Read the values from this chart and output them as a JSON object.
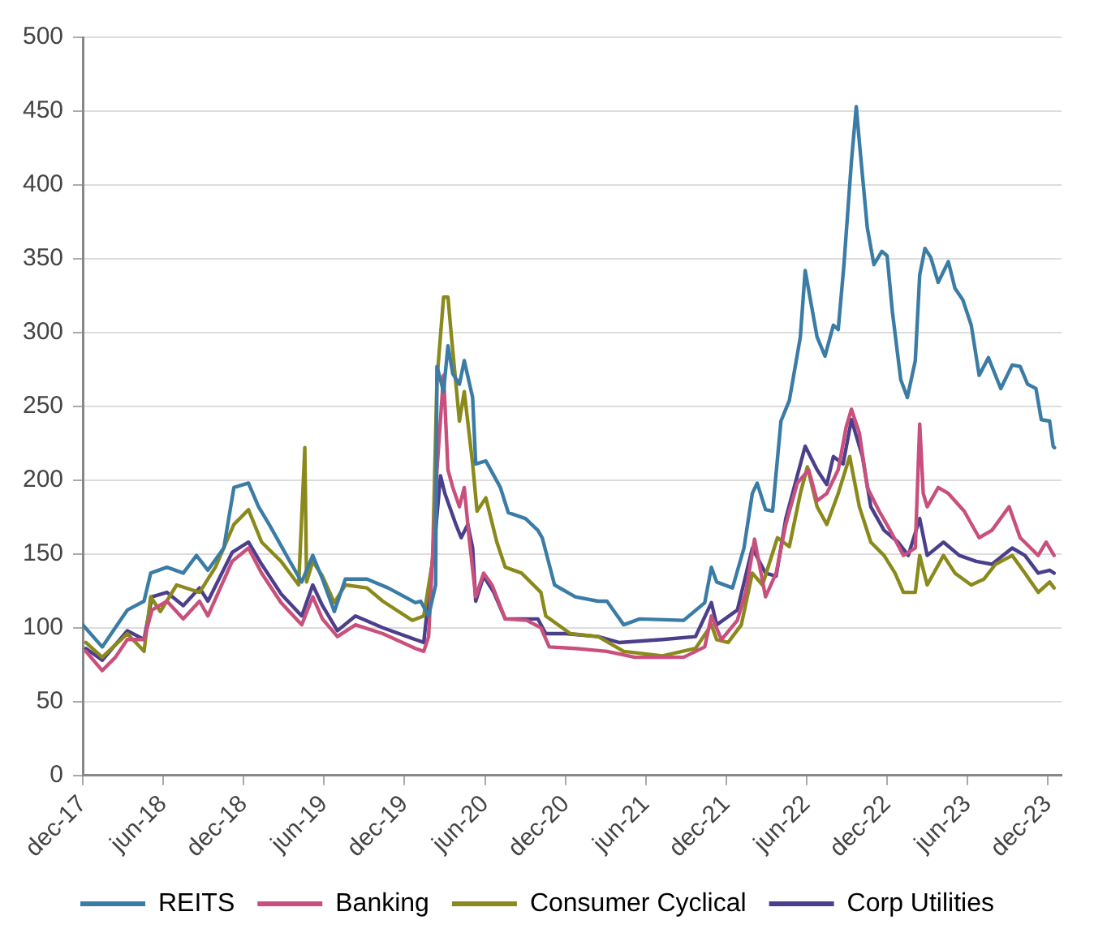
{
  "chart_data": {
    "type": "line",
    "xlim": [
      "2017-12-01",
      "2024-01-01"
    ],
    "ylim": [
      0,
      500
    ],
    "yticks": [
      0,
      50,
      100,
      150,
      200,
      250,
      300,
      350,
      400,
      450,
      500
    ],
    "xticks": [
      {
        "value": "2017-12-01",
        "label": "dec-17"
      },
      {
        "value": "2018-06-01",
        "label": "jun-18"
      },
      {
        "value": "2018-12-01",
        "label": "dec-18"
      },
      {
        "value": "2019-06-01",
        "label": "jun-19"
      },
      {
        "value": "2019-12-01",
        "label": "dec-19"
      },
      {
        "value": "2020-06-01",
        "label": "jun-20"
      },
      {
        "value": "2020-12-01",
        "label": "dec-20"
      },
      {
        "value": "2021-06-01",
        "label": "jun-21"
      },
      {
        "value": "2021-12-01",
        "label": "dec-21"
      },
      {
        "value": "2022-06-01",
        "label": "jun-22"
      },
      {
        "value": "2022-12-01",
        "label": "dec-22"
      },
      {
        "value": "2023-06-01",
        "label": "jun-23"
      },
      {
        "value": "2023-12-01",
        "label": "dec-23"
      }
    ],
    "grid": "y",
    "legend": "bottom",
    "marker": "none",
    "line_style": "solid",
    "series": [
      {
        "name": "REITS",
        "color": "#3a7ca5",
        "x": [
          "2017-12-01",
          "2018-01-14",
          "2018-03-12",
          "2018-04-19",
          "2018-05-04",
          "2018-06-10",
          "2018-07-17",
          "2018-08-16",
          "2018-09-11",
          "2018-10-17",
          "2018-11-09",
          "2018-12-12",
          "2019-01-04",
          "2019-01-28",
          "2019-03-16",
          "2019-04-12",
          "2019-05-07",
          "2019-05-29",
          "2019-06-25",
          "2019-07-20",
          "2019-09-07",
          "2019-10-25",
          "2019-12-26",
          "2020-01-07",
          "2020-01-25",
          "2020-02-10",
          "2020-02-13",
          "2020-02-28",
          "2020-03-09",
          "2020-03-20",
          "2020-04-04",
          "2020-04-15",
          "2020-05-04",
          "2020-05-11",
          "2020-06-03",
          "2020-07-06",
          "2020-07-24",
          "2020-09-01",
          "2020-09-29",
          "2020-10-09",
          "2020-11-06",
          "2020-12-23",
          "2021-02-13",
          "2021-03-05",
          "2021-04-12",
          "2021-05-18",
          "2021-08-26",
          "2021-10-13",
          "2021-10-28",
          "2021-11-09",
          "2021-12-15",
          "2022-01-10",
          "2022-01-29",
          "2022-02-09",
          "2022-02-28",
          "2022-03-16",
          "2022-04-04",
          "2022-04-23",
          "2022-05-18",
          "2022-05-29",
          "2022-06-10",
          "2022-06-25",
          "2022-07-13",
          "2022-08-01",
          "2022-08-12",
          "2022-08-25",
          "2022-09-11",
          "2022-09-22",
          "2022-09-29",
          "2022-10-17",
          "2022-11-01",
          "2022-11-19",
          "2022-12-01",
          "2022-12-13",
          "2023-01-01",
          "2023-01-16",
          "2023-02-03",
          "2023-02-13",
          "2023-02-25",
          "2023-03-10",
          "2023-03-27",
          "2023-04-19",
          "2023-05-04",
          "2023-05-22",
          "2023-06-10",
          "2023-06-28",
          "2023-07-19",
          "2023-08-16",
          "2023-09-11",
          "2023-09-29",
          "2023-10-16",
          "2023-11-04",
          "2023-11-16",
          "2023-12-05",
          "2023-12-13",
          "2023-12-16"
        ],
        "values": [
          102,
          87,
          112,
          118,
          137,
          141,
          137,
          149,
          139,
          154,
          195,
          198,
          182,
          170,
          145,
          131,
          149,
          133,
          111,
          133,
          133,
          127,
          117,
          118,
          108,
          129,
          277,
          260,
          291,
          272,
          265,
          281,
          256,
          211,
          213,
          195,
          178,
          174,
          166,
          161,
          129,
          121,
          118,
          118,
          102,
          106,
          105,
          117,
          141,
          131,
          127,
          154,
          191,
          198,
          180,
          179,
          240,
          254,
          297,
          342,
          322,
          297,
          284,
          305,
          302,
          346,
          416,
          453,
          429,
          371,
          346,
          355,
          352,
          314,
          268,
          256,
          281,
          339,
          357,
          351,
          334,
          348,
          330,
          322,
          305,
          271,
          283,
          262,
          278,
          277,
          265,
          262,
          241,
          240,
          223,
          222
        ]
      },
      {
        "name": "Banking",
        "color": "#c94f7c",
        "x": [
          "2017-12-08",
          "2018-01-14",
          "2018-02-13",
          "2018-03-12",
          "2018-04-19",
          "2018-05-07",
          "2018-06-10",
          "2018-07-17",
          "2018-08-23",
          "2018-09-11",
          "2018-11-05",
          "2018-12-12",
          "2019-01-11",
          "2019-02-24",
          "2019-04-12",
          "2019-05-07",
          "2019-05-29",
          "2019-07-02",
          "2019-08-12",
          "2019-10-13",
          "2019-12-26",
          "2020-01-14",
          "2020-01-25",
          "2020-02-13",
          "2020-02-28",
          "2020-03-09",
          "2020-03-20",
          "2020-04-04",
          "2020-04-15",
          "2020-04-26",
          "2020-05-11",
          "2020-05-29",
          "2020-06-17",
          "2020-07-17",
          "2020-09-04",
          "2020-10-06",
          "2020-10-25",
          "2020-12-23",
          "2021-03-05",
          "2021-05-07",
          "2021-08-26",
          "2021-10-13",
          "2021-10-28",
          "2021-11-20",
          "2021-12-26",
          "2022-01-14",
          "2022-02-03",
          "2022-02-28",
          "2022-03-24",
          "2022-04-15",
          "2022-05-11",
          "2022-06-06",
          "2022-06-25",
          "2022-07-17",
          "2022-08-12",
          "2022-08-30",
          "2022-09-11",
          "2022-09-29",
          "2022-10-17",
          "2022-11-13",
          "2022-12-08",
          "2023-01-07",
          "2023-02-03",
          "2023-02-13",
          "2023-02-21",
          "2023-03-02",
          "2023-03-27",
          "2023-04-19",
          "2023-05-25",
          "2023-06-28",
          "2023-07-27",
          "2023-09-04",
          "2023-09-29",
          "2023-11-09",
          "2023-11-27",
          "2023-12-15"
        ],
        "values": [
          84,
          71,
          80,
          92,
          92,
          112,
          118,
          106,
          118,
          108,
          145,
          154,
          137,
          117,
          102,
          121,
          106,
          94,
          102,
          96,
          86,
          84,
          94,
          207,
          271,
          207,
          195,
          182,
          195,
          161,
          121,
          137,
          129,
          106,
          105,
          100,
          87,
          86,
          84,
          80,
          80,
          87,
          108,
          92,
          105,
          124,
          160,
          121,
          137,
          170,
          198,
          207,
          186,
          191,
          207,
          236,
          248,
          232,
          195,
          179,
          166,
          149,
          154,
          238,
          191,
          182,
          195,
          191,
          179,
          161,
          166,
          182,
          161,
          149,
          158,
          149
        ]
      },
      {
        "name": "Consumer Cyclical",
        "color": "#8a8a1c",
        "x": [
          "2017-12-08",
          "2018-01-14",
          "2018-03-12",
          "2018-04-19",
          "2018-05-04",
          "2018-05-26",
          "2018-07-02",
          "2018-08-23",
          "2018-09-28",
          "2018-11-09",
          "2018-12-12",
          "2019-01-11",
          "2019-02-24",
          "2019-04-05",
          "2019-04-19",
          "2019-04-23",
          "2019-05-07",
          "2019-05-29",
          "2019-06-25",
          "2019-07-20",
          "2019-09-07",
          "2019-10-13",
          "2019-12-19",
          "2020-01-14",
          "2020-02-03",
          "2020-02-13",
          "2020-02-28",
          "2020-03-09",
          "2020-03-17",
          "2020-04-04",
          "2020-04-15",
          "2020-05-04",
          "2020-05-14",
          "2020-06-03",
          "2020-06-28",
          "2020-07-17",
          "2020-08-23",
          "2020-10-06",
          "2020-10-17",
          "2020-12-12",
          "2021-02-13",
          "2021-04-12",
          "2021-07-09",
          "2021-09-22",
          "2021-10-28",
          "2021-11-09",
          "2021-12-05",
          "2022-01-04",
          "2022-01-29",
          "2022-02-21",
          "2022-03-27",
          "2022-04-23",
          "2022-05-18",
          "2022-06-03",
          "2022-06-25",
          "2022-07-17",
          "2022-08-12",
          "2022-09-07",
          "2022-09-29",
          "2022-10-25",
          "2022-11-24",
          "2022-12-19",
          "2023-01-07",
          "2023-02-03",
          "2023-02-13",
          "2023-03-02",
          "2023-04-08",
          "2023-05-04",
          "2023-06-10",
          "2023-07-09",
          "2023-08-04",
          "2023-09-11",
          "2023-10-10",
          "2023-11-09",
          "2023-12-05",
          "2023-12-15"
        ],
        "values": [
          90,
          80,
          96,
          84,
          121,
          111,
          129,
          124,
          141,
          170,
          180,
          158,
          145,
          129,
          222,
          131,
          145,
          135,
          117,
          129,
          127,
          118,
          105,
          108,
          145,
          268,
          324,
          324,
          297,
          240,
          260,
          211,
          179,
          188,
          158,
          141,
          137,
          124,
          108,
          96,
          94,
          84,
          81,
          86,
          102,
          92,
          90,
          102,
          137,
          129,
          161,
          155,
          191,
          209,
          182,
          170,
          191,
          216,
          182,
          158,
          149,
          137,
          124,
          124,
          149,
          129,
          149,
          137,
          129,
          133,
          143,
          149,
          137,
          124,
          131,
          127
        ]
      },
      {
        "name": "Corp Utilities",
        "color": "#4b3f8c",
        "x": [
          "2017-12-08",
          "2018-01-14",
          "2018-03-12",
          "2018-04-19",
          "2018-05-07",
          "2018-06-10",
          "2018-07-17",
          "2018-08-23",
          "2018-09-11",
          "2018-11-05",
          "2018-12-12",
          "2019-01-11",
          "2019-02-24",
          "2019-04-12",
          "2019-05-07",
          "2019-05-29",
          "2019-07-02",
          "2019-08-12",
          "2019-10-13",
          "2019-12-26",
          "2020-01-14",
          "2020-02-10",
          "2020-02-21",
          "2020-03-02",
          "2020-03-27",
          "2020-04-08",
          "2020-04-23",
          "2020-05-04",
          "2020-05-11",
          "2020-05-29",
          "2020-06-21",
          "2020-07-17",
          "2020-08-23",
          "2020-09-29",
          "2020-10-17",
          "2020-12-01",
          "2021-02-13",
          "2021-04-01",
          "2021-07-09",
          "2021-09-22",
          "2021-10-28",
          "2021-11-09",
          "2021-12-26",
          "2022-01-29",
          "2022-02-28",
          "2022-03-24",
          "2022-04-15",
          "2022-05-29",
          "2022-06-25",
          "2022-07-17",
          "2022-08-01",
          "2022-08-23",
          "2022-09-11",
          "2022-10-06",
          "2022-10-25",
          "2022-11-24",
          "2022-12-26",
          "2023-01-18",
          "2023-02-13",
          "2023-03-02",
          "2023-04-08",
          "2023-05-14",
          "2023-06-21",
          "2023-07-27",
          "2023-09-11",
          "2023-10-10",
          "2023-11-09",
          "2023-12-05",
          "2023-12-15"
        ],
        "values": [
          86,
          78,
          98,
          92,
          121,
          124,
          115,
          127,
          118,
          151,
          158,
          143,
          123,
          108,
          129,
          115,
          98,
          108,
          100,
          92,
          90,
          166,
          203,
          191,
          170,
          161,
          170,
          154,
          118,
          135,
          124,
          106,
          106,
          106,
          96,
          96,
          94,
          90,
          92,
          94,
          117,
          102,
          112,
          154,
          137,
          135,
          174,
          223,
          207,
          197,
          216,
          211,
          241,
          216,
          182,
          166,
          158,
          149,
          174,
          149,
          158,
          149,
          145,
          143,
          154,
          149,
          137,
          139,
          137
        ]
      }
    ]
  }
}
